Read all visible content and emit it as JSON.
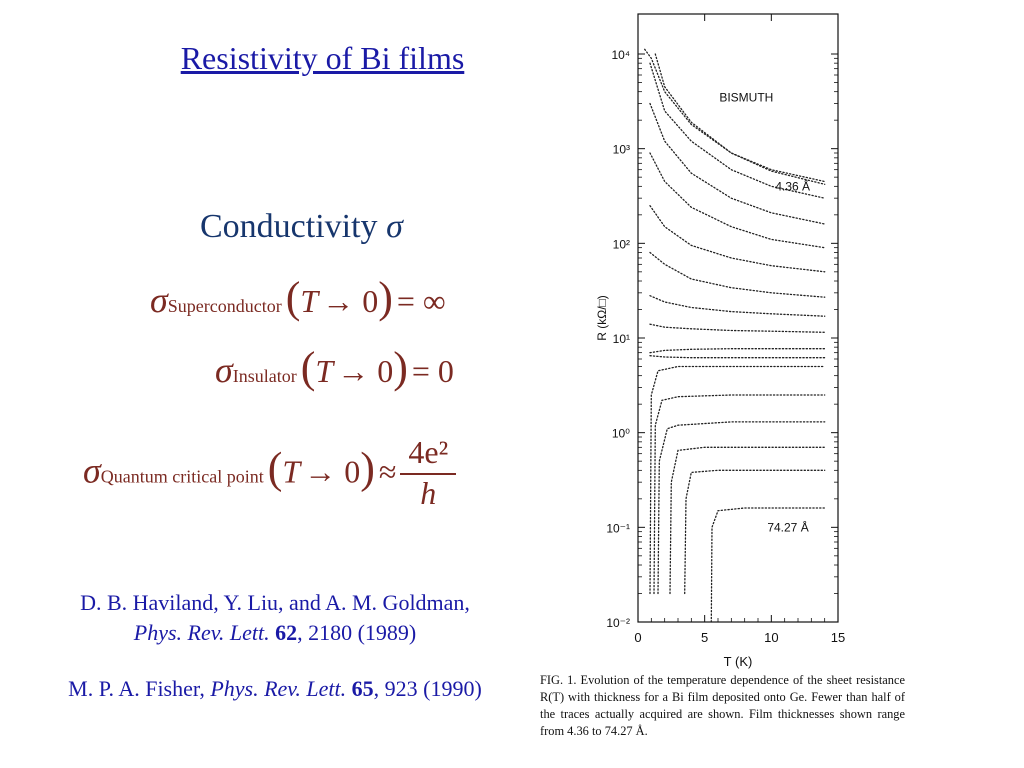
{
  "slide": {
    "title": "Resistivity of Bi films",
    "conductivity_heading": "Conductivity",
    "sigma_symbol": "σ"
  },
  "equations": {
    "superconductor": {
      "sigma": "σ",
      "subscript": "Superconductor",
      "T": "T",
      "arrow_zero": "→ 0",
      "relation": "= ∞"
    },
    "insulator": {
      "sigma": "σ",
      "subscript": "Insulator",
      "T": "T",
      "arrow_zero": "→ 0",
      "relation": "= 0"
    },
    "qcp": {
      "sigma": "σ",
      "subscript": "Quantum critical point",
      "T": "T",
      "arrow_zero": "→ 0",
      "relation": "≈",
      "numerator": "4e²",
      "denominator": "h"
    }
  },
  "references": {
    "ref1_line1": "D. B. Haviland, Y. Liu, and A. M. Goldman,",
    "ref1_journal": "Phys. Rev. Lett.",
    "ref1_volume": "62",
    "ref1_rest": ", 2180 (1989)",
    "ref2_authors": "M. P. A. Fisher, ",
    "ref2_journal": "Phys. Rev. Lett.",
    "ref2_volume": "65",
    "ref2_rest": ", 923 (1990)"
  },
  "caption": "FIG. 1. Evolution of the temperature dependence of the sheet resistance R(T) with thickness for a Bi film deposited onto Ge. Fewer than half of the traces actually acquired are shown. Film thicknesses shown range from 4.36 to 74.27 Å.",
  "chart_data": {
    "type": "line",
    "title": "BISMUTH",
    "xlabel": "T (K)",
    "ylabel": "R (kΩ/□)",
    "xlim": [
      0,
      15
    ],
    "ylim": [
      0.01,
      10000
    ],
    "yscale": "log",
    "xticks": [
      "0",
      "5",
      "10",
      "15"
    ],
    "yticks": [
      "10⁻²",
      "10⁻¹",
      "10⁰",
      "10¹",
      "10²",
      "10³",
      "10⁴"
    ],
    "annotations": [
      "4.36 Å",
      "74.27 Å"
    ],
    "colors": {
      "traces": "#222222",
      "axis": "#111111"
    },
    "series": [
      {
        "kind": "insulating",
        "values": [
          [
            0.5,
            20000
          ],
          [
            1.0,
            9000
          ],
          [
            2,
            4000
          ],
          [
            4,
            1800
          ],
          [
            7,
            900
          ],
          [
            10,
            600
          ],
          [
            14,
            450
          ]
        ]
      },
      {
        "kind": "insulating",
        "values": [
          [
            1.3,
            10000
          ],
          [
            2,
            4500
          ],
          [
            4,
            1900
          ],
          [
            7,
            900
          ],
          [
            10,
            580
          ],
          [
            14,
            420
          ]
        ]
      },
      {
        "kind": "insulating",
        "values": [
          [
            0.9,
            8000
          ],
          [
            2,
            2500
          ],
          [
            4,
            1200
          ],
          [
            7,
            600
          ],
          [
            10,
            400
          ],
          [
            14,
            300
          ]
        ]
      },
      {
        "kind": "insulating",
        "values": [
          [
            0.9,
            3000
          ],
          [
            2,
            1200
          ],
          [
            4,
            550
          ],
          [
            7,
            300
          ],
          [
            10,
            210
          ],
          [
            14,
            160
          ]
        ]
      },
      {
        "kind": "insulating",
        "values": [
          [
            0.9,
            900
          ],
          [
            2,
            450
          ],
          [
            4,
            240
          ],
          [
            7,
            150
          ],
          [
            10,
            110
          ],
          [
            14,
            90
          ]
        ]
      },
      {
        "kind": "insulating",
        "values": [
          [
            0.9,
            250
          ],
          [
            2,
            150
          ],
          [
            4,
            95
          ],
          [
            7,
            70
          ],
          [
            10,
            58
          ],
          [
            14,
            50
          ]
        ]
      },
      {
        "kind": "insulating",
        "values": [
          [
            0.9,
            80
          ],
          [
            2,
            60
          ],
          [
            4,
            42
          ],
          [
            7,
            34
          ],
          [
            10,
            30
          ],
          [
            14,
            27
          ]
        ]
      },
      {
        "kind": "insulating",
        "values": [
          [
            0.9,
            28
          ],
          [
            2,
            24
          ],
          [
            4,
            21
          ],
          [
            7,
            19
          ],
          [
            10,
            18
          ],
          [
            14,
            17
          ]
        ]
      },
      {
        "kind": "insulating",
        "values": [
          [
            0.9,
            14
          ],
          [
            2,
            13
          ],
          [
            4,
            12.5
          ],
          [
            7,
            12
          ],
          [
            10,
            11.8
          ],
          [
            14,
            11.5
          ]
        ]
      },
      {
        "kind": "flat",
        "values": [
          [
            0.9,
            7
          ],
          [
            2,
            7.4
          ],
          [
            4,
            7.6
          ],
          [
            7,
            7.7
          ],
          [
            10,
            7.7
          ],
          [
            14,
            7.7
          ]
        ]
      },
      {
        "kind": "flat",
        "values": [
          [
            0.9,
            6.5
          ],
          [
            2,
            6.3
          ],
          [
            4,
            6.2
          ],
          [
            7,
            6.2
          ],
          [
            10,
            6.2
          ],
          [
            14,
            6.2
          ]
        ]
      },
      {
        "kind": "superconducting",
        "values": [
          [
            0.9,
            0.02
          ],
          [
            1.0,
            2.5
          ],
          [
            1.5,
            4.5
          ],
          [
            3,
            5
          ],
          [
            7,
            5
          ],
          [
            10,
            5
          ],
          [
            14,
            5
          ]
        ]
      },
      {
        "kind": "superconducting",
        "values": [
          [
            1.2,
            0.02
          ],
          [
            1.3,
            1.2
          ],
          [
            1.8,
            2.2
          ],
          [
            3,
            2.4
          ],
          [
            7,
            2.5
          ],
          [
            14,
            2.5
          ]
        ]
      },
      {
        "kind": "superconducting",
        "values": [
          [
            1.5,
            0.02
          ],
          [
            1.6,
            0.5
          ],
          [
            2.2,
            1.1
          ],
          [
            3,
            1.2
          ],
          [
            7,
            1.3
          ],
          [
            14,
            1.3
          ]
        ]
      },
      {
        "kind": "superconducting",
        "values": [
          [
            2.4,
            0.02
          ],
          [
            2.5,
            0.3
          ],
          [
            3,
            0.65
          ],
          [
            5,
            0.7
          ],
          [
            10,
            0.7
          ],
          [
            14,
            0.7
          ]
        ]
      },
      {
        "kind": "superconducting",
        "values": [
          [
            3.5,
            0.02
          ],
          [
            3.6,
            0.2
          ],
          [
            4,
            0.38
          ],
          [
            6,
            0.4
          ],
          [
            10,
            0.4
          ],
          [
            14,
            0.4
          ]
        ]
      },
      {
        "kind": "superconducting",
        "values": [
          [
            5.5,
            0.01
          ],
          [
            5.55,
            0.1
          ],
          [
            6,
            0.15
          ],
          [
            8,
            0.16
          ],
          [
            14,
            0.16
          ]
        ]
      }
    ]
  }
}
